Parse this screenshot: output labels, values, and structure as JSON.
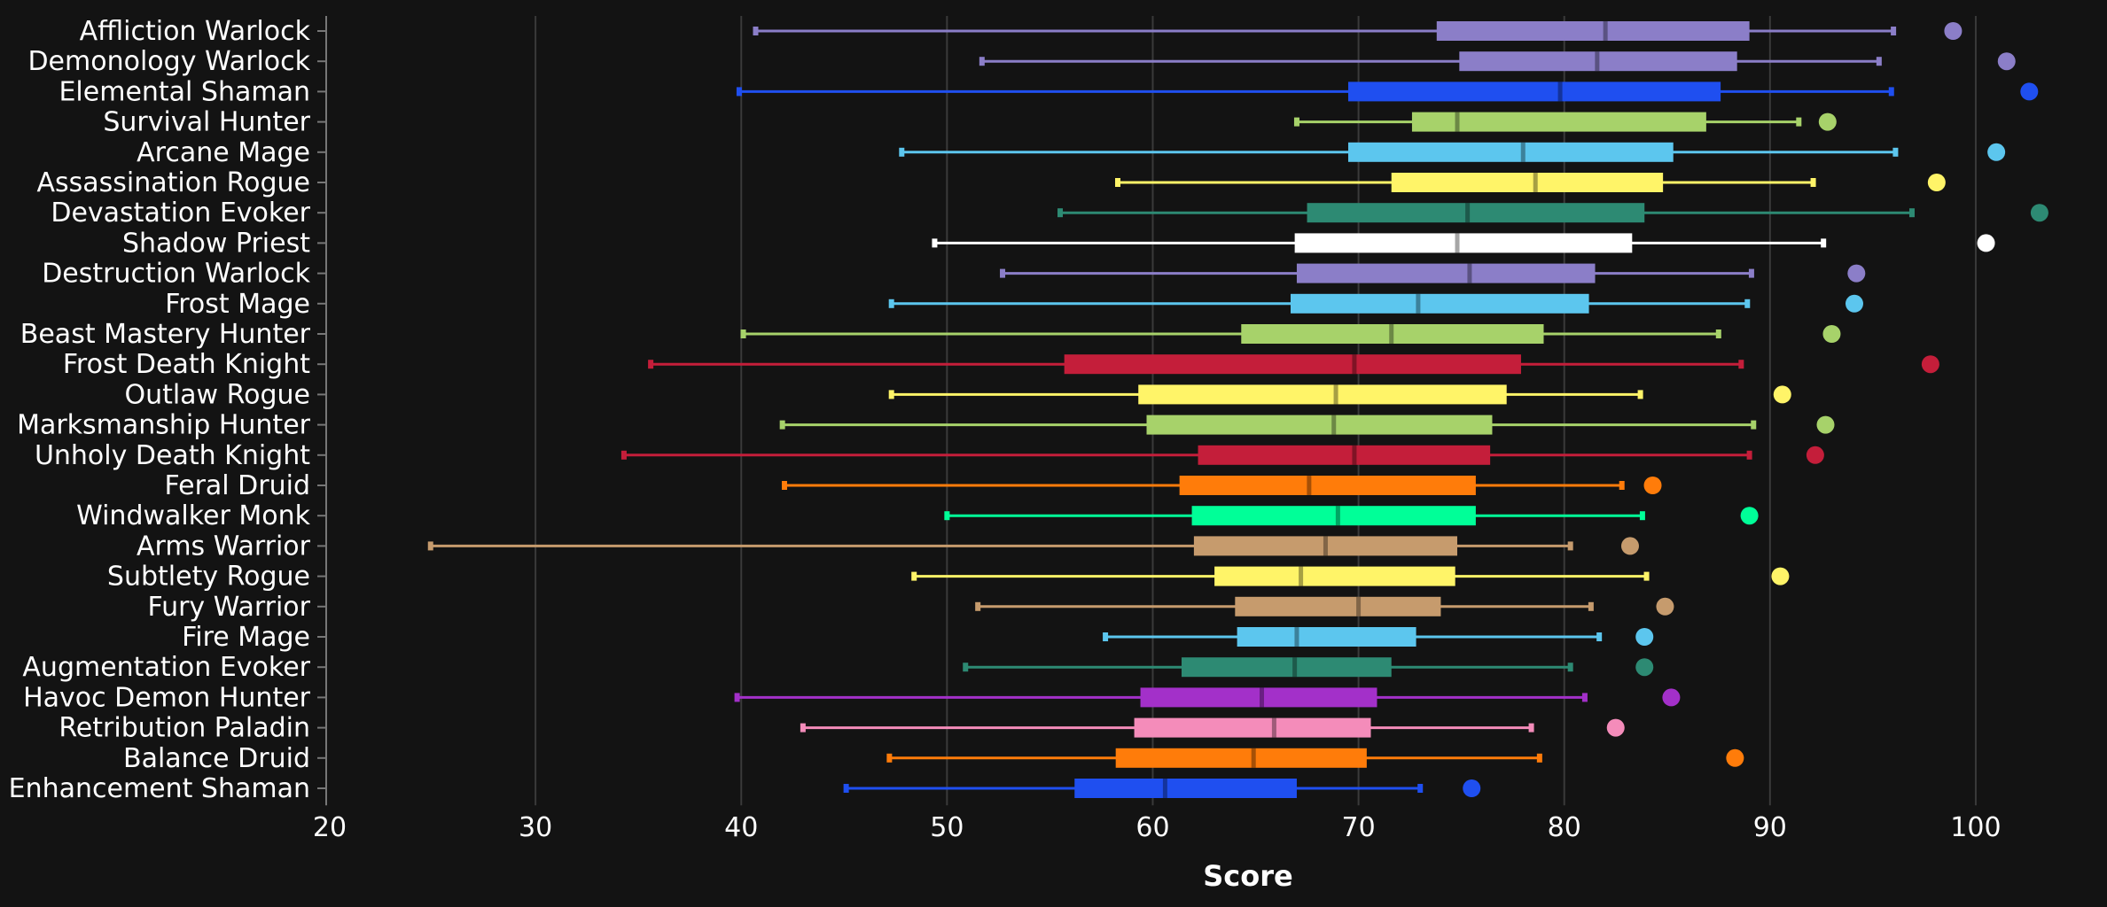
{
  "chart_data": {
    "type": "boxplot",
    "xlabel": "Score",
    "xlim": [
      20,
      105
    ],
    "xticks": [
      20,
      30,
      40,
      50,
      60,
      70,
      80,
      90,
      100
    ],
    "grid": "vertical",
    "series": [
      {
        "name": "Affliction Warlock",
        "min": 40.7,
        "q1": 73.8,
        "median": 82.0,
        "q3": 89.0,
        "max": 96.0,
        "top": 98.9,
        "color": "#8b7ec8"
      },
      {
        "name": "Demonology Warlock",
        "min": 51.7,
        "q1": 74.9,
        "median": 81.6,
        "q3": 88.4,
        "max": 95.3,
        "top": 101.5,
        "color": "#8b7ec8"
      },
      {
        "name": "Elemental Shaman",
        "min": 39.9,
        "q1": 69.5,
        "median": 79.8,
        "q3": 87.6,
        "max": 95.9,
        "top": 102.6,
        "color": "#1f4ff0"
      },
      {
        "name": "Survival Hunter",
        "min": 67.0,
        "q1": 72.6,
        "median": 74.8,
        "q3": 86.9,
        "max": 91.4,
        "top": 92.8,
        "color": "#a7d26a"
      },
      {
        "name": "Arcane Mage",
        "min": 47.8,
        "q1": 69.5,
        "median": 78.0,
        "q3": 85.3,
        "max": 96.1,
        "top": 101.0,
        "color": "#5cc6ee"
      },
      {
        "name": "Assassination Rogue",
        "min": 58.3,
        "q1": 71.6,
        "median": 78.6,
        "q3": 84.8,
        "max": 92.1,
        "top": 98.1,
        "color": "#fff468"
      },
      {
        "name": "Devastation Evoker",
        "min": 55.5,
        "q1": 67.5,
        "median": 75.3,
        "q3": 83.9,
        "max": 96.9,
        "top": 103.1,
        "color": "#2d8a73"
      },
      {
        "name": "Shadow Priest",
        "min": 49.4,
        "q1": 66.9,
        "median": 74.8,
        "q3": 83.3,
        "max": 92.6,
        "top": 100.5,
        "color": "#ffffff"
      },
      {
        "name": "Destruction Warlock",
        "min": 52.7,
        "q1": 67.0,
        "median": 75.4,
        "q3": 81.5,
        "max": 89.1,
        "top": 94.2,
        "color": "#8b7ec8"
      },
      {
        "name": "Frost Mage",
        "min": 47.3,
        "q1": 66.7,
        "median": 72.9,
        "q3": 81.2,
        "max": 88.9,
        "top": 94.1,
        "color": "#5cc6ee"
      },
      {
        "name": "Beast Mastery Hunter",
        "min": 40.1,
        "q1": 64.3,
        "median": 71.6,
        "q3": 79.0,
        "max": 87.5,
        "top": 93.0,
        "color": "#a7d26a"
      },
      {
        "name": "Frost Death Knight",
        "min": 35.6,
        "q1": 55.7,
        "median": 69.8,
        "q3": 77.9,
        "max": 88.6,
        "top": 97.8,
        "color": "#c41e3a"
      },
      {
        "name": "Outlaw Rogue",
        "min": 47.3,
        "q1": 59.3,
        "median": 68.9,
        "q3": 77.2,
        "max": 83.7,
        "top": 90.6,
        "color": "#fff468"
      },
      {
        "name": "Marksmanship Hunter",
        "min": 42.0,
        "q1": 59.7,
        "median": 68.8,
        "q3": 76.5,
        "max": 89.2,
        "top": 92.7,
        "color": "#a7d26a"
      },
      {
        "name": "Unholy Death Knight",
        "min": 34.3,
        "q1": 62.2,
        "median": 69.8,
        "q3": 76.4,
        "max": 89.0,
        "top": 92.2,
        "color": "#c41e3a"
      },
      {
        "name": "Feral Druid",
        "min": 42.1,
        "q1": 61.3,
        "median": 67.6,
        "q3": 75.7,
        "max": 82.8,
        "top": 84.3,
        "color": "#ff7c0a"
      },
      {
        "name": "Windwalker Monk",
        "min": 50.0,
        "q1": 61.9,
        "median": 69.0,
        "q3": 75.7,
        "max": 83.8,
        "top": 89.0,
        "color": "#00ff98"
      },
      {
        "name": "Arms Warrior",
        "min": 24.9,
        "q1": 62.0,
        "median": 68.4,
        "q3": 74.8,
        "max": 80.3,
        "top": 83.2,
        "color": "#c69b6d"
      },
      {
        "name": "Subtlety Rogue",
        "min": 48.4,
        "q1": 63.0,
        "median": 67.2,
        "q3": 74.7,
        "max": 84.0,
        "top": 90.5,
        "color": "#fff468"
      },
      {
        "name": "Fury Warrior",
        "min": 51.5,
        "q1": 64.0,
        "median": 70.0,
        "q3": 74.0,
        "max": 81.3,
        "top": 84.9,
        "color": "#c69b6d"
      },
      {
        "name": "Fire Mage",
        "min": 57.7,
        "q1": 64.1,
        "median": 67.0,
        "q3": 72.8,
        "max": 81.7,
        "top": 83.9,
        "color": "#5cc6ee"
      },
      {
        "name": "Augmentation Evoker",
        "min": 50.9,
        "q1": 61.4,
        "median": 66.9,
        "q3": 71.6,
        "max": 80.3,
        "top": 83.9,
        "color": "#2d8a73"
      },
      {
        "name": "Havoc Demon Hunter",
        "min": 39.8,
        "q1": 59.4,
        "median": 65.3,
        "q3": 70.9,
        "max": 81.0,
        "top": 85.2,
        "color": "#a330c9"
      },
      {
        "name": "Retribution Paladin",
        "min": 43.0,
        "q1": 59.1,
        "median": 65.9,
        "q3": 70.6,
        "max": 78.4,
        "top": 82.5,
        "color": "#f48cba"
      },
      {
        "name": "Balance Druid",
        "min": 47.2,
        "q1": 58.2,
        "median": 64.9,
        "q3": 70.4,
        "max": 78.8,
        "top": 88.3,
        "color": "#ff7c0a"
      },
      {
        "name": "Enhancement Shaman",
        "min": 45.1,
        "q1": 56.2,
        "median": 60.6,
        "q3": 67.0,
        "max": 73.0,
        "top": 75.5,
        "color": "#1f4ff0"
      }
    ]
  }
}
